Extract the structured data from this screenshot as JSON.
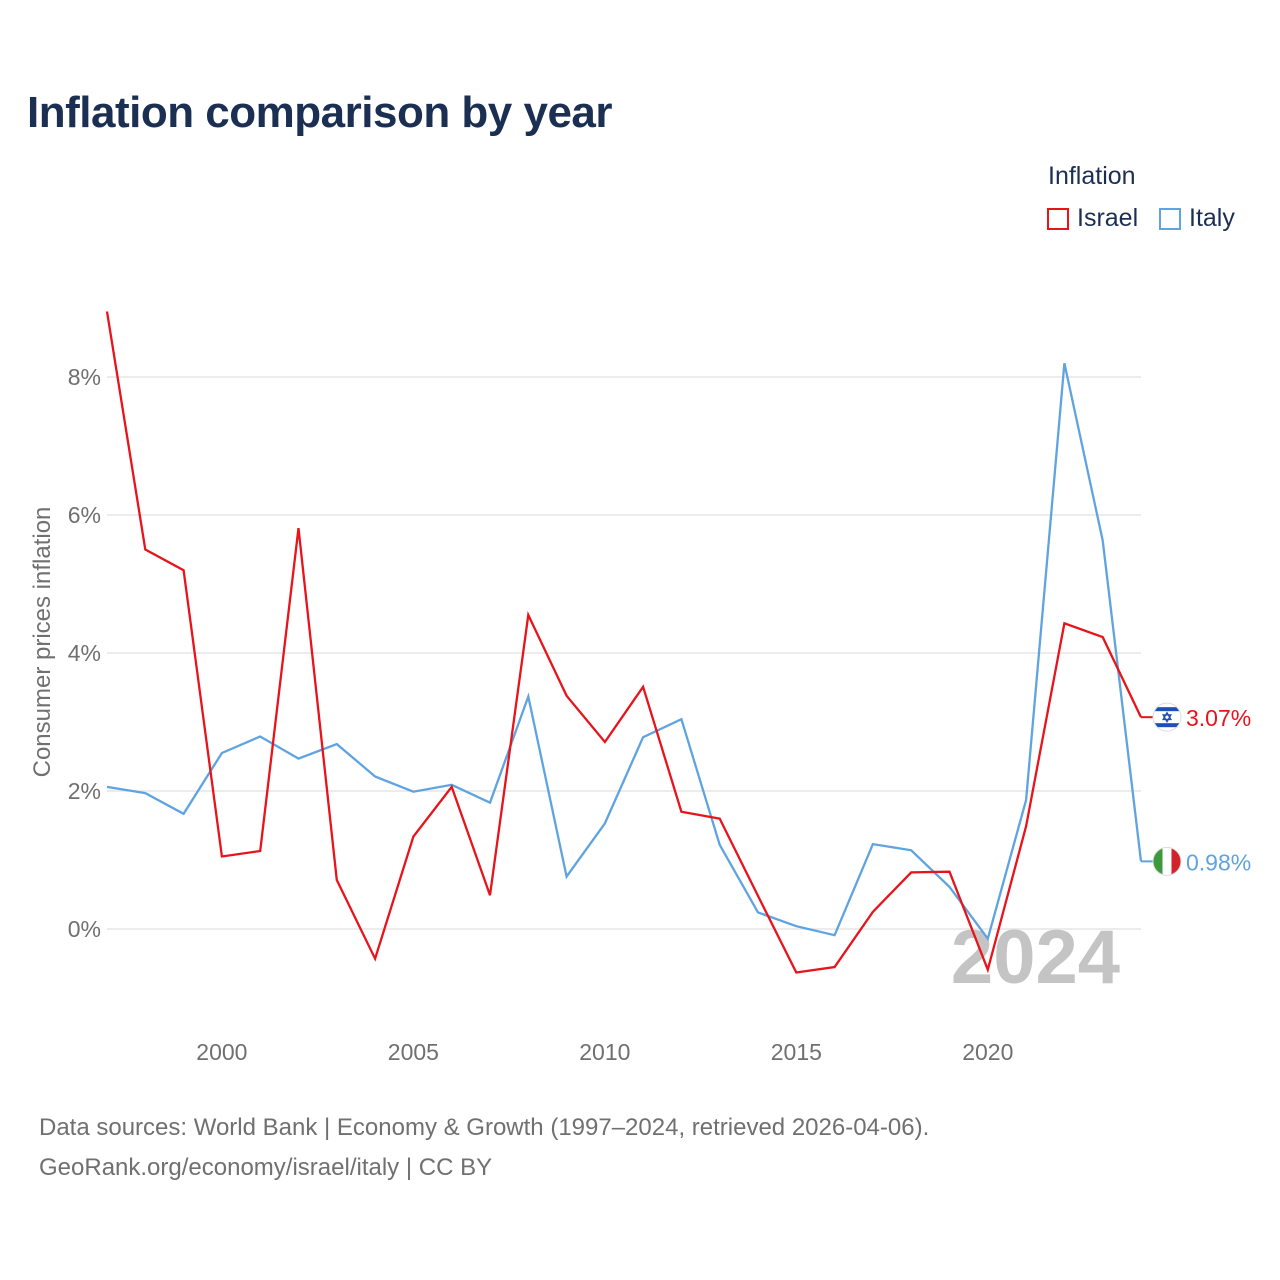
{
  "title": "Inflation comparison by year",
  "legend": {
    "title": "Inflation",
    "items": [
      {
        "label": "Israel",
        "color": "#e8131b"
      },
      {
        "label": "Italy",
        "color": "#5fa3e0"
      }
    ]
  },
  "watermark_year": "2024",
  "source": {
    "line1": "Data sources: World Bank | Economy & Growth (1997–2024, retrieved 2026-04-06).",
    "line2": "GeoRank.org/economy/israel/italy | CC BY"
  },
  "chart_data": {
    "type": "line",
    "title": "Inflation comparison by year",
    "xlabel": "",
    "ylabel": "Consumer prices inflation",
    "x": [
      1997,
      1998,
      1999,
      2000,
      2001,
      2002,
      2003,
      2004,
      2005,
      2006,
      2007,
      2008,
      2009,
      2010,
      2011,
      2012,
      2013,
      2014,
      2015,
      2016,
      2017,
      2018,
      2019,
      2020,
      2021,
      2022,
      2023,
      2024
    ],
    "xticks": [
      2000,
      2005,
      2010,
      2015,
      2020
    ],
    "xtick_labels": [
      "2000",
      "2005",
      "2010",
      "2015",
      "2020"
    ],
    "yticks": [
      0,
      2,
      4,
      6,
      8
    ],
    "ytick_labels": [
      "0%",
      "2%",
      "4%",
      "6%",
      "8%"
    ],
    "xlim": [
      1997,
      2024
    ],
    "ylim": [
      -1.2,
      9.0
    ],
    "grid": true,
    "series": [
      {
        "name": "Israel",
        "color": "#e8131b",
        "end_label": "3.07%",
        "flag": "israel-flag",
        "values": [
          8.95,
          5.5,
          5.2,
          1.05,
          1.13,
          5.81,
          0.71,
          -0.43,
          1.34,
          2.06,
          0.49,
          4.55,
          3.38,
          2.71,
          3.51,
          1.7,
          1.6,
          0.48,
          -0.63,
          -0.55,
          0.25,
          0.82,
          0.83,
          -0.59,
          1.49,
          4.43,
          4.23,
          3.07
        ]
      },
      {
        "name": "Italy",
        "color": "#5fa3e0",
        "end_label": "0.98%",
        "flag": "italy-flag",
        "values": [
          2.06,
          1.97,
          1.67,
          2.55,
          2.79,
          2.47,
          2.68,
          2.21,
          1.99,
          2.09,
          1.83,
          3.37,
          0.76,
          1.53,
          2.78,
          3.04,
          1.22,
          0.24,
          0.04,
          -0.09,
          1.23,
          1.14,
          0.61,
          -0.14,
          1.87,
          8.2,
          5.63,
          0.98
        ]
      }
    ]
  }
}
